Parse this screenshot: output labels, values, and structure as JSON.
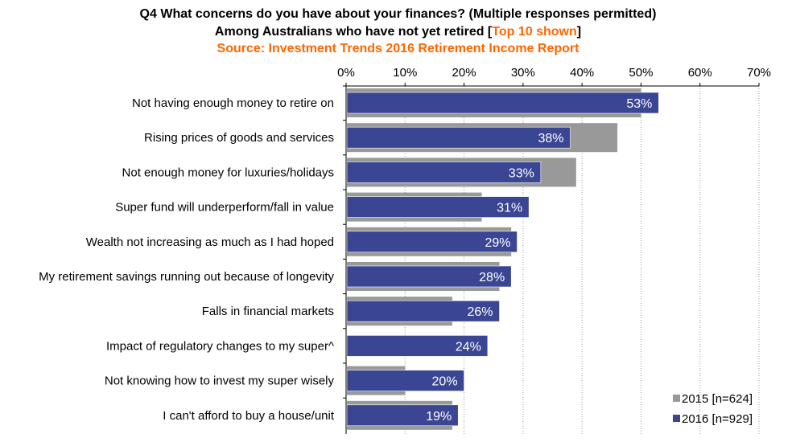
{
  "chart_data": {
    "type": "bar",
    "orientation": "horizontal",
    "title": "Q4 What concerns do you have about your finances? (Multiple responses permitted)",
    "subtitle_prefix": "Among Australians who have not yet retired [",
    "subtitle_highlight": "Top 10 shown",
    "subtitle_suffix": "]",
    "source": "Source: Investment Trends 2016 Retirement Income Report",
    "categories": [
      "Not having enough money to retire on",
      "Rising prices of goods and services",
      "Not enough money for luxuries/holidays",
      "Super fund will underperform/fall in value",
      "Wealth not increasing as much as I had hoped",
      "My retirement savings running out because of longevity",
      "Falls in financial markets",
      "Impact of regulatory changes to my super^",
      "Not knowing how to invest my super wisely",
      "I can't afford to buy a house/unit"
    ],
    "series": [
      {
        "name": "2015 [n=624]",
        "color": "#999999",
        "values": [
          50,
          46,
          39,
          23,
          28,
          26,
          18,
          null,
          10,
          18
        ]
      },
      {
        "name": "2016 [n=929]",
        "color": "#3a4694",
        "values": [
          53,
          38,
          33,
          31,
          29,
          28,
          26,
          24,
          20,
          19
        ]
      }
    ],
    "data_labels": [
      "53%",
      "38%",
      "33%",
      "31%",
      "29%",
      "28%",
      "26%",
      "24%",
      "20%",
      "19%"
    ],
    "xlim": [
      0,
      70
    ],
    "xticks": [
      "0%",
      "10%",
      "20%",
      "30%",
      "40%",
      "50%",
      "60%",
      "70%"
    ],
    "xaxis_position": "top",
    "grid": "vertical dotted",
    "legend_position": "bottom-right",
    "accent_color": "#ff6600"
  }
}
